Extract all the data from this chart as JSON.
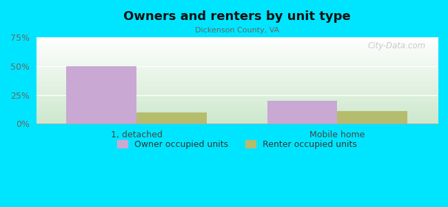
{
  "title": "Owners and renters by unit type",
  "subtitle": "Dickenson County, VA",
  "categories": [
    "1, detached",
    "Mobile home"
  ],
  "owner_values": [
    50,
    20
  ],
  "renter_values": [
    10,
    11
  ],
  "owner_color": "#c9a8d4",
  "renter_color": "#b5bc6e",
  "ylim": [
    0,
    75
  ],
  "yticks": [
    0,
    25,
    50,
    75
  ],
  "ytick_labels": [
    "0%",
    "25%",
    "50%",
    "75%"
  ],
  "bar_width": 0.35,
  "background_color": "#00e5ff",
  "plot_bg_top": "#ffffff",
  "plot_bg_bottom": "#cde8cc",
  "watermark": "City-Data.com",
  "legend_labels": [
    "Owner occupied units",
    "Renter occupied units"
  ]
}
